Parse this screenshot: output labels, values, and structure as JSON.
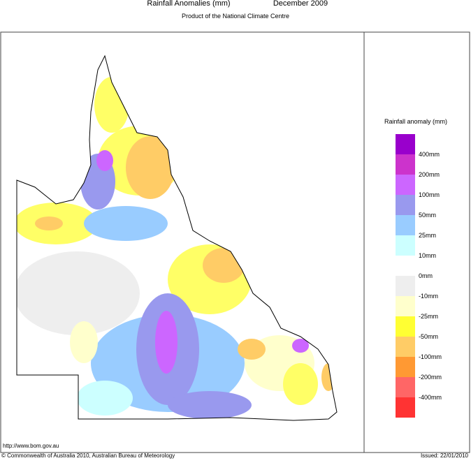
{
  "header": {
    "title": "Rainfall Anomalies (mm)",
    "period": "December 2009",
    "subtitle": "Product of the National Climate Centre"
  },
  "legend": {
    "title": "Rainfall anomaly (mm)",
    "colors": [
      "#9900cc",
      "#cc33cc",
      "#cc66ff",
      "#9999ee",
      "#99ccff",
      "#ccffff",
      "#ffffff",
      "#eeeeee",
      "#ffffcc",
      "#ffff33",
      "#ffcc66",
      "#ff9933",
      "#ff6666",
      "#ff3333"
    ],
    "labels": [
      "400mm",
      "200mm",
      "100mm",
      "50mm",
      "25mm",
      "10mm",
      "0mm",
      "-10mm",
      "-25mm",
      "-50mm",
      "-100mm",
      "-200mm",
      "-400mm"
    ]
  },
  "footer": {
    "url": "http://www.bom.gov.au",
    "copyright": "© Commonwealth of Australia 2010, Australian Bureau of Meteorology",
    "issued": "Issued: 22/01/2010"
  }
}
